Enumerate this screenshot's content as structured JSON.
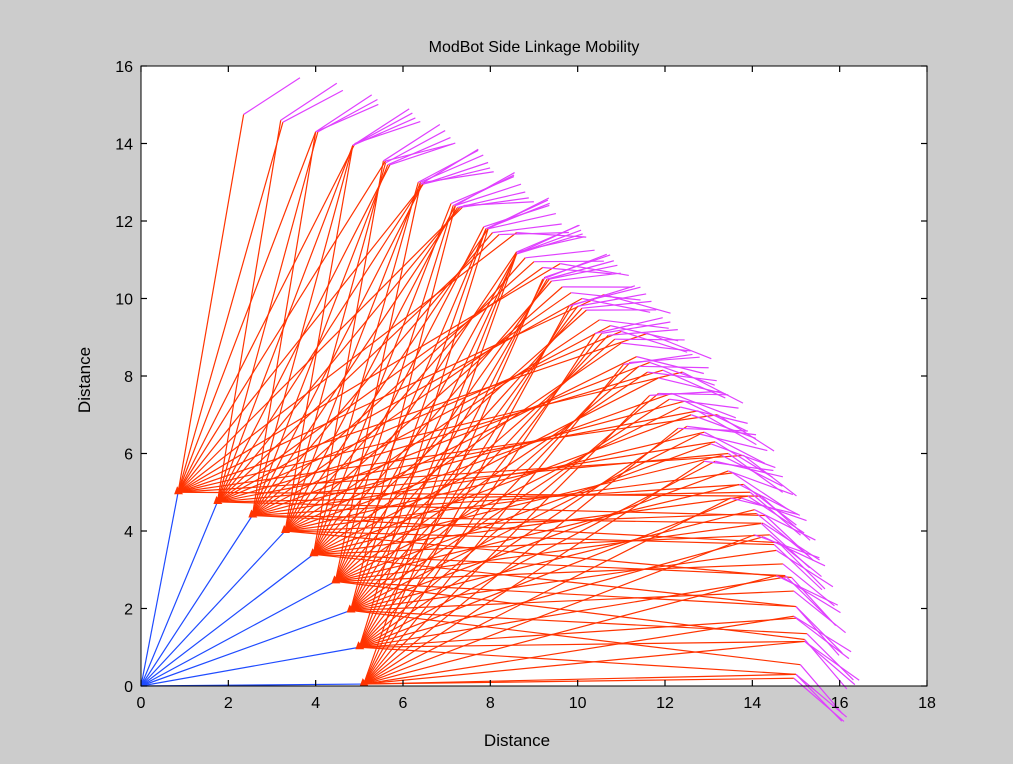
{
  "chart_data": {
    "type": "line",
    "title": "ModBot Side Linkage Mobility",
    "xlabel": "Distance",
    "ylabel": "Distance",
    "xlim": [
      0,
      18
    ],
    "ylim": [
      0,
      16
    ],
    "xticks": [
      "0",
      "2",
      "4",
      "6",
      "8",
      "10",
      "12",
      "14",
      "16",
      "18"
    ],
    "yticks": [
      "0",
      "2",
      "4",
      "6",
      "8",
      "10",
      "12",
      "14",
      "16"
    ],
    "grid": false,
    "colors": {
      "link1": "#1f4bff",
      "link2": "#ff3300",
      "link3": "#e040ff",
      "figure_bg": "#cccccc",
      "axes_bg": "#ffffff"
    },
    "base_point": [
      0,
      0
    ],
    "series": [
      {
        "joint": [
          0.85,
          5.0
        ],
        "tips": [
          [
            2.35,
            14.75
          ],
          [
            3.25,
            14.55
          ],
          [
            4.0,
            14.3
          ],
          [
            4.9,
            14.0
          ],
          [
            5.6,
            13.55
          ],
          [
            6.5,
            13.0
          ],
          [
            7.4,
            12.4
          ],
          [
            8.6,
            11.7
          ],
          [
            9.6,
            10.9
          ],
          [
            10.6,
            10.1
          ],
          [
            11.6,
            9.1
          ],
          [
            12.4,
            8.1
          ],
          [
            13.2,
            7.0
          ],
          [
            13.8,
            5.95
          ],
          [
            14.2,
            4.9
          ]
        ]
      },
      {
        "joint": [
          1.75,
          4.75
        ],
        "tips": [
          [
            3.2,
            14.6
          ],
          [
            4.05,
            14.3
          ],
          [
            4.85,
            13.95
          ],
          [
            5.7,
            13.45
          ],
          [
            6.45,
            12.95
          ],
          [
            7.3,
            12.35
          ],
          [
            8.2,
            11.65
          ],
          [
            9.2,
            10.8
          ],
          [
            10.1,
            10.0
          ],
          [
            11.0,
            9.15
          ],
          [
            11.95,
            8.15
          ],
          [
            12.75,
            7.1
          ],
          [
            13.45,
            6.0
          ],
          [
            13.95,
            5.0
          ],
          [
            14.3,
            4.4
          ]
        ]
      },
      {
        "joint": [
          2.55,
          4.4
        ],
        "tips": [
          [
            4.0,
            14.3
          ],
          [
            4.85,
            13.95
          ],
          [
            5.65,
            13.45
          ],
          [
            6.45,
            12.95
          ],
          [
            7.25,
            12.35
          ],
          [
            8.05,
            11.7
          ],
          [
            9.0,
            10.95
          ],
          [
            9.85,
            10.15
          ],
          [
            10.75,
            9.3
          ],
          [
            11.65,
            8.35
          ],
          [
            12.45,
            7.35
          ],
          [
            13.15,
            6.3
          ],
          [
            13.8,
            5.2
          ],
          [
            14.2,
            4.2
          ],
          [
            14.6,
            3.7
          ]
        ]
      },
      {
        "joint": [
          3.3,
          4.0
        ],
        "tips": [
          [
            4.85,
            13.95
          ],
          [
            5.6,
            13.5
          ],
          [
            6.4,
            13.0
          ],
          [
            7.2,
            12.4
          ],
          [
            7.95,
            11.8
          ],
          [
            8.8,
            11.05
          ],
          [
            9.65,
            10.3
          ],
          [
            10.5,
            9.45
          ],
          [
            11.35,
            8.5
          ],
          [
            12.15,
            7.55
          ],
          [
            12.9,
            6.55
          ],
          [
            13.55,
            5.5
          ],
          [
            14.1,
            4.45
          ],
          [
            14.5,
            3.65
          ],
          [
            14.9,
            2.8
          ]
        ]
      },
      {
        "joint": [
          3.95,
          3.4
        ],
        "tips": [
          [
            5.55,
            13.55
          ],
          [
            6.35,
            13.0
          ],
          [
            7.1,
            12.45
          ],
          [
            7.85,
            11.85
          ],
          [
            8.6,
            11.2
          ],
          [
            9.4,
            10.45
          ],
          [
            10.2,
            9.7
          ],
          [
            11.0,
            8.85
          ],
          [
            11.85,
            7.95
          ],
          [
            12.6,
            7.0
          ],
          [
            13.3,
            5.95
          ],
          [
            13.9,
            4.9
          ],
          [
            14.4,
            3.9
          ],
          [
            14.75,
            2.85
          ],
          [
            15.0,
            2.05
          ]
        ]
      },
      {
        "joint": [
          4.45,
          2.7
        ],
        "tips": [
          [
            6.4,
            12.95
          ],
          [
            7.15,
            12.4
          ],
          [
            7.9,
            11.8
          ],
          [
            8.6,
            11.15
          ],
          [
            9.35,
            10.5
          ],
          [
            10.1,
            9.75
          ],
          [
            10.85,
            8.95
          ],
          [
            11.6,
            8.1
          ],
          [
            12.35,
            7.2
          ],
          [
            13.05,
            6.25
          ],
          [
            13.7,
            5.2
          ],
          [
            14.25,
            4.2
          ],
          [
            14.7,
            3.15
          ],
          [
            15.0,
            2.05
          ],
          [
            15.2,
            1.2
          ]
        ]
      },
      {
        "joint": [
          4.8,
          1.95
        ],
        "tips": [
          [
            7.2,
            12.4
          ],
          [
            7.9,
            11.8
          ],
          [
            8.6,
            11.15
          ],
          [
            9.3,
            10.5
          ],
          [
            10.0,
            9.8
          ],
          [
            10.7,
            9.05
          ],
          [
            11.4,
            8.25
          ],
          [
            12.1,
            7.4
          ],
          [
            12.8,
            6.5
          ],
          [
            13.45,
            5.55
          ],
          [
            14.05,
            4.55
          ],
          [
            14.55,
            3.5
          ],
          [
            14.95,
            2.45
          ],
          [
            15.25,
            1.35
          ],
          [
            15.1,
            0.55
          ]
        ]
      },
      {
        "joint": [
          5.0,
          1.0
        ],
        "tips": [
          [
            7.95,
            11.8
          ],
          [
            8.6,
            11.2
          ],
          [
            9.25,
            10.55
          ],
          [
            9.9,
            9.85
          ],
          [
            10.55,
            9.1
          ],
          [
            11.2,
            8.35
          ],
          [
            11.85,
            7.55
          ],
          [
            12.5,
            6.7
          ],
          [
            13.15,
            5.8
          ],
          [
            13.75,
            4.85
          ],
          [
            14.25,
            3.85
          ],
          [
            14.7,
            2.8
          ],
          [
            15.0,
            1.75
          ],
          [
            15.2,
            1.15
          ],
          [
            15.0,
            0.3
          ]
        ]
      },
      {
        "joint": [
          5.1,
          0.05
        ],
        "tips": [
          [
            8.6,
            11.15
          ],
          [
            9.2,
            10.5
          ],
          [
            9.8,
            9.8
          ],
          [
            10.4,
            9.1
          ],
          [
            11.05,
            8.3
          ],
          [
            11.65,
            7.5
          ],
          [
            12.3,
            6.65
          ],
          [
            12.9,
            5.8
          ],
          [
            13.5,
            4.85
          ],
          [
            14.05,
            3.9
          ],
          [
            14.55,
            2.85
          ],
          [
            14.95,
            1.8
          ],
          [
            15.2,
            1.15
          ],
          [
            15.0,
            0.3
          ],
          [
            14.95,
            0.2
          ]
        ]
      }
    ]
  }
}
